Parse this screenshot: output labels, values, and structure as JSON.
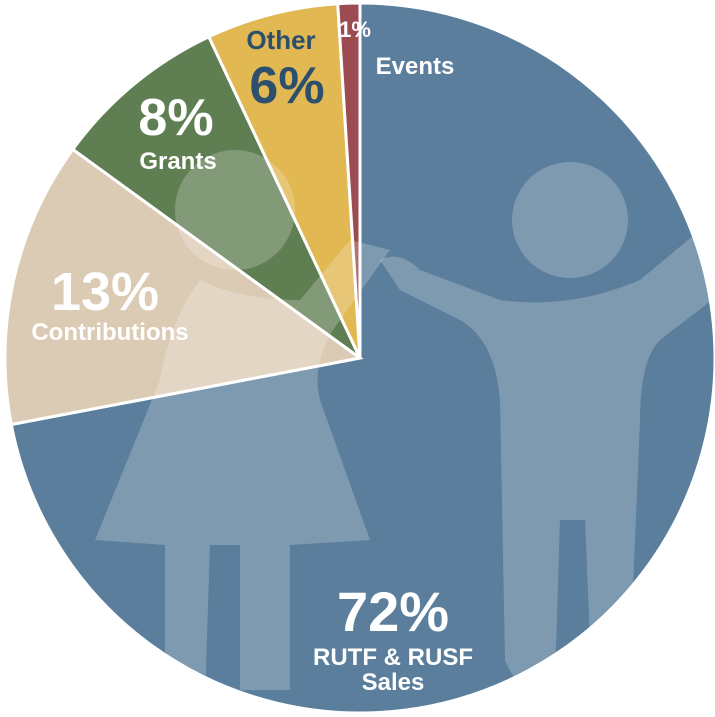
{
  "chart_data": {
    "type": "pie",
    "categories": [
      "RUTF & RUSF Sales",
      "Contributions",
      "Grants",
      "Other",
      "Events"
    ],
    "values": [
      72,
      13,
      8,
      6,
      1
    ],
    "value_labels": [
      "72%",
      "13%",
      "8%",
      "6%",
      "1%"
    ],
    "colors": [
      "#5a7e9b",
      "#dccbb4",
      "#5f7e52",
      "#e1b851",
      "#9c4b50"
    ]
  }
}
